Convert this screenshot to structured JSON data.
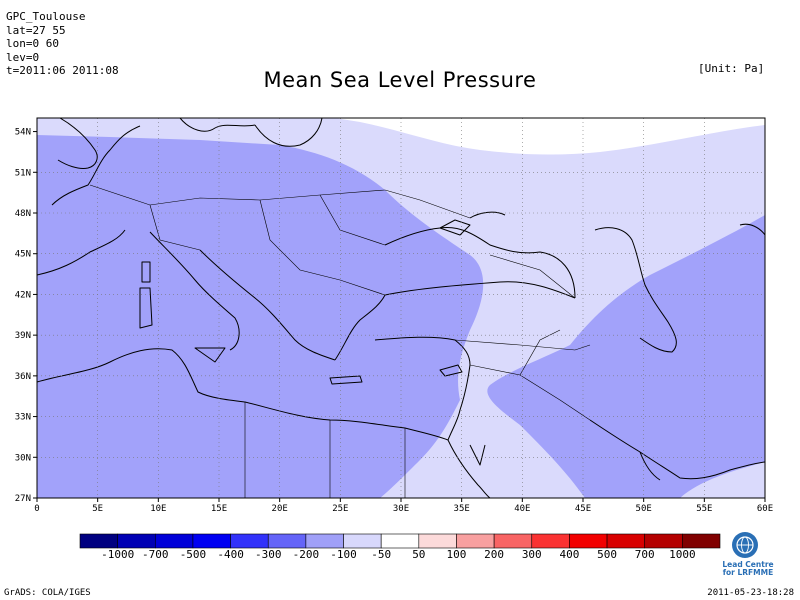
{
  "header": {
    "meta_lines": [
      "GPC_Toulouse",
      "lat=27 55",
      "lon=0 60",
      "lev=0",
      "t=2011:06 2011:08"
    ],
    "unit": "[Unit: Pa]",
    "title": "Mean Sea Level Pressure"
  },
  "map": {
    "lat_labels": [
      "54N",
      "51N",
      "48N",
      "45N",
      "42N",
      "39N",
      "36N",
      "33N",
      "30N",
      "27N"
    ],
    "lon_labels": [
      "0",
      "5E",
      "10E",
      "15E",
      "20E",
      "25E",
      "30E",
      "35E",
      "40E",
      "45E",
      "50E",
      "55E",
      "60E"
    ],
    "lat_range": [
      27,
      55
    ],
    "lon_range": [
      0,
      60
    ],
    "grid": true,
    "grid_style": "dotted",
    "colors": {
      "light_blue": "#dadafc",
      "mid_blue": "#a2a2fa",
      "land_edge": "#000000"
    }
  },
  "colorbar": {
    "labels": [
      "-1000",
      "-700",
      "-500",
      "-400",
      "-300",
      "-200",
      "-100",
      "-50",
      "50",
      "100",
      "200",
      "300",
      "400",
      "500",
      "700",
      "1000"
    ],
    "colors": [
      "#000080",
      "#0000b4",
      "#0000d8",
      "#0000f2",
      "#3232fa",
      "#6464f8",
      "#a0a0f8",
      "#d8d8fc",
      "#ffffff",
      "#fcdada",
      "#f8a0a0",
      "#f86464",
      "#fa3232",
      "#f20000",
      "#d80000",
      "#b40000",
      "#800000"
    ]
  },
  "logo": {
    "icon": "wmo-emblem-icon",
    "text_line1": "Lead Centre",
    "text_line2": "for LRFMME"
  },
  "footer": {
    "left": "GrADS: COLA/IGES",
    "right": "2011-05-23-18:28"
  }
}
